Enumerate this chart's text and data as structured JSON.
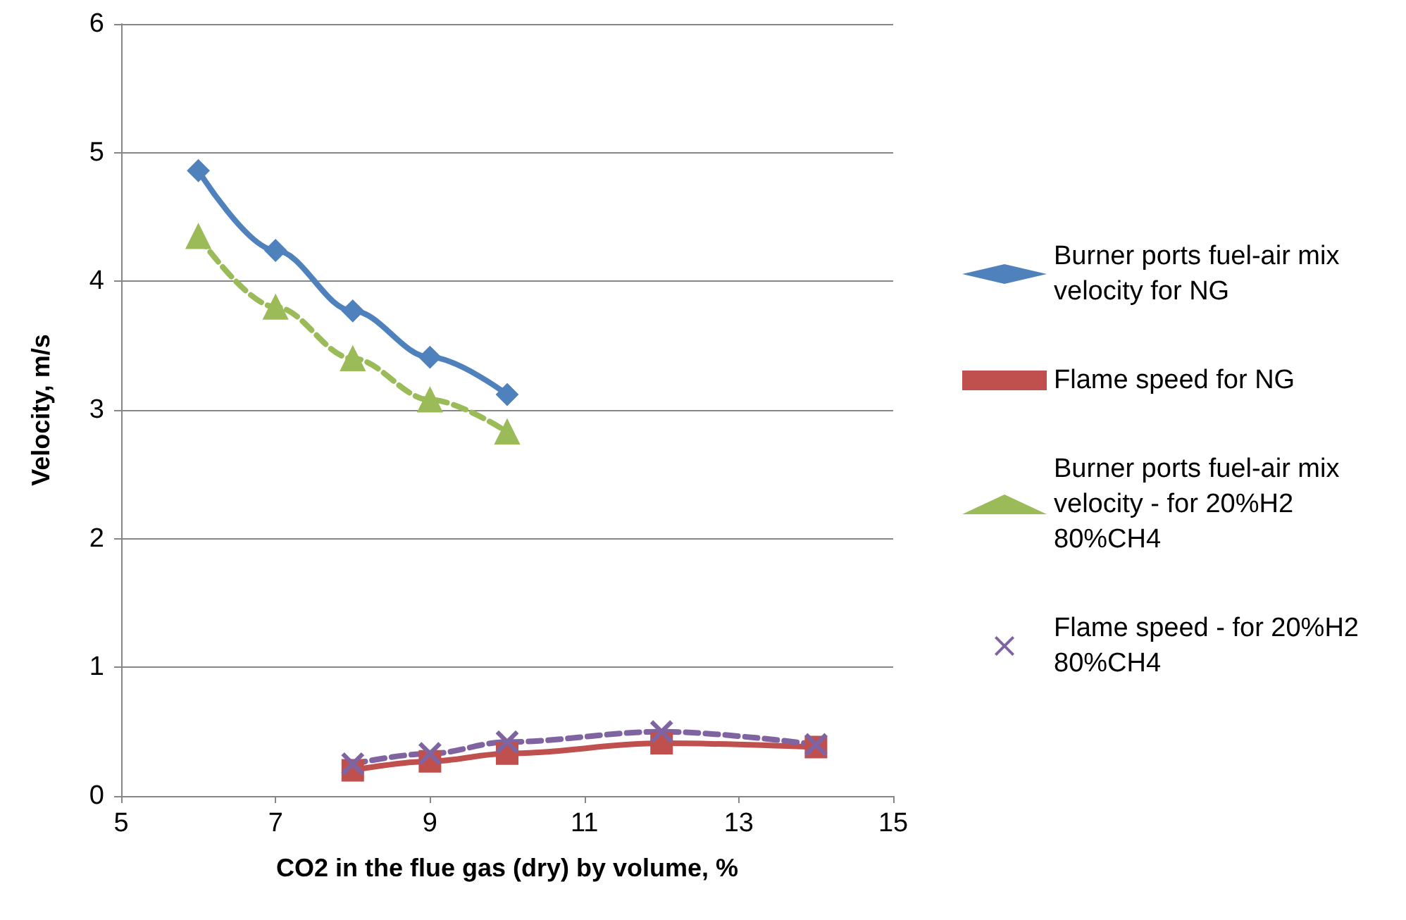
{
  "chart_data": {
    "type": "line",
    "xlabel": "CO2 in the flue gas (dry) by volume, %",
    "ylabel": "Velocity, m/s",
    "xlim": [
      5,
      15
    ],
    "xticks": [
      5,
      7,
      9,
      11,
      13,
      15
    ],
    "ylim": [
      0,
      6
    ],
    "yticks": [
      0,
      1,
      2,
      3,
      4,
      5,
      6
    ],
    "grid": "y",
    "legend": "right",
    "series": [
      {
        "name": "Burner ports fuel-air mix velocity for NG",
        "color": "#4f81bd",
        "marker": "diamond",
        "line_style": "solid",
        "x": [
          6,
          7,
          8,
          9,
          10
        ],
        "values": [
          4.86,
          4.24,
          3.77,
          3.41,
          3.12
        ]
      },
      {
        "name": "Flame speed for NG",
        "color": "#c0504d",
        "marker": "square",
        "line_style": "solid",
        "x": [
          8,
          9,
          10,
          12,
          14
        ],
        "values": [
          0.2,
          0.27,
          0.33,
          0.41,
          0.38
        ]
      },
      {
        "name": "Burner ports fuel-air mix velocity - for 20%H2 80%CH4",
        "color": "#9bbb59",
        "marker": "triangle",
        "line_style": "dashed",
        "x": [
          6,
          7,
          8,
          9,
          10
        ],
        "values": [
          4.35,
          3.8,
          3.4,
          3.08,
          2.83
        ]
      },
      {
        "name": "Flame speed - for 20%H2 80%CH4",
        "color": "#8064a2",
        "marker": "cross",
        "line_style": "dashed",
        "x": [
          8,
          9,
          10,
          12,
          14
        ],
        "values": [
          0.25,
          0.33,
          0.42,
          0.5,
          0.4
        ]
      }
    ]
  }
}
